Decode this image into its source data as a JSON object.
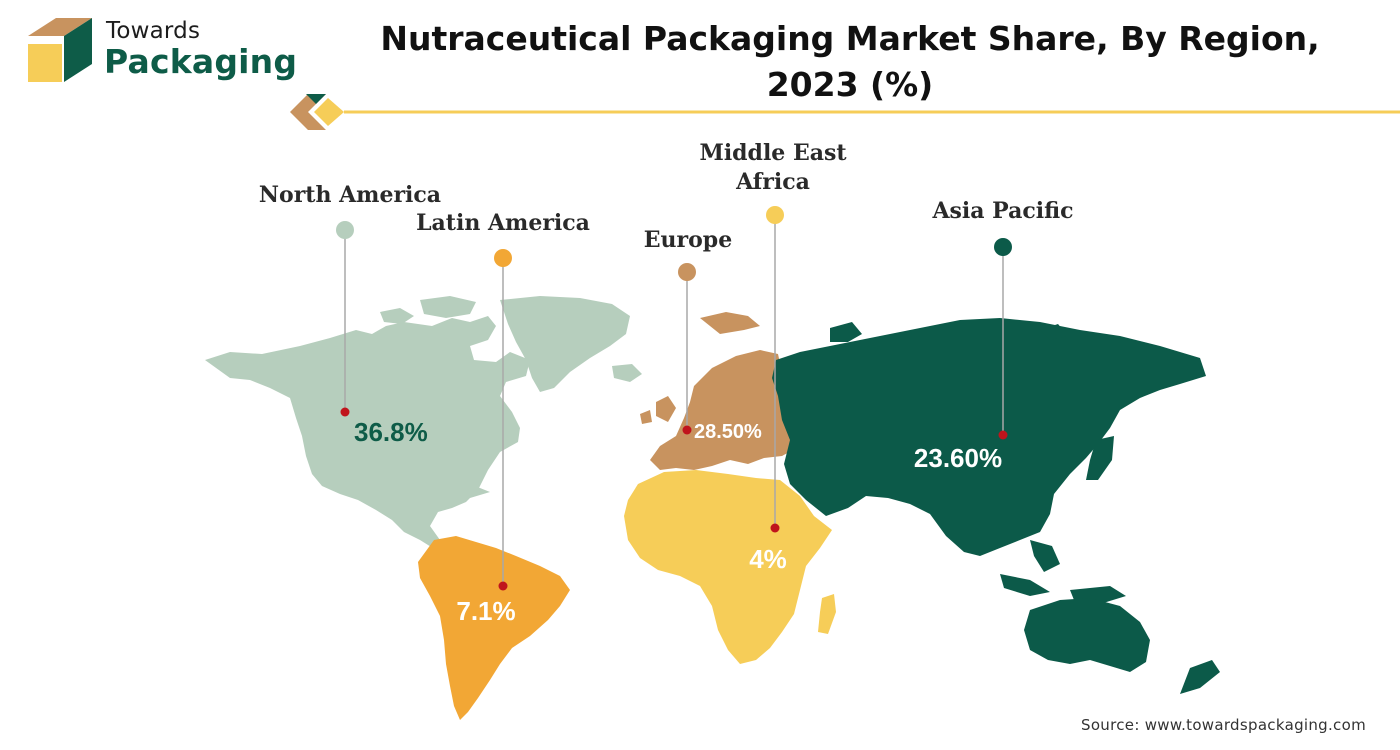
{
  "brand": {
    "line1": "Towards",
    "line2": "Packaging"
  },
  "header": {
    "title": "Nutraceutical Packaging Market Share, By Region, 2023 (%)"
  },
  "footer": {
    "source": "Source: www.towardspackaging.com"
  },
  "chart_data": {
    "type": "map",
    "title": "Nutraceutical Packaging Market Share, By Region, 2023 (%)",
    "unit": "%",
    "regions": [
      {
        "name": "North America",
        "value": 36.8,
        "display": "36.8%",
        "color": "#b6cebd",
        "value_color": "#0e5c48"
      },
      {
        "name": "Latin America",
        "value": 7.1,
        "display": "7.1%",
        "color": "#f2a735",
        "value_color": "#ffffff"
      },
      {
        "name": "Europe",
        "value": 28.5,
        "display": "28.50%",
        "color": "#c8935f",
        "value_color": "#ffffff"
      },
      {
        "name": "Middle East Africa",
        "value": 4,
        "display": "4%",
        "color": "#f6cd58",
        "value_color": "#ffffff"
      },
      {
        "name": "Asia Pacific",
        "value": 23.6,
        "display": "23.60%",
        "color": "#0c5a49",
        "value_color": "#ffffff"
      }
    ]
  }
}
